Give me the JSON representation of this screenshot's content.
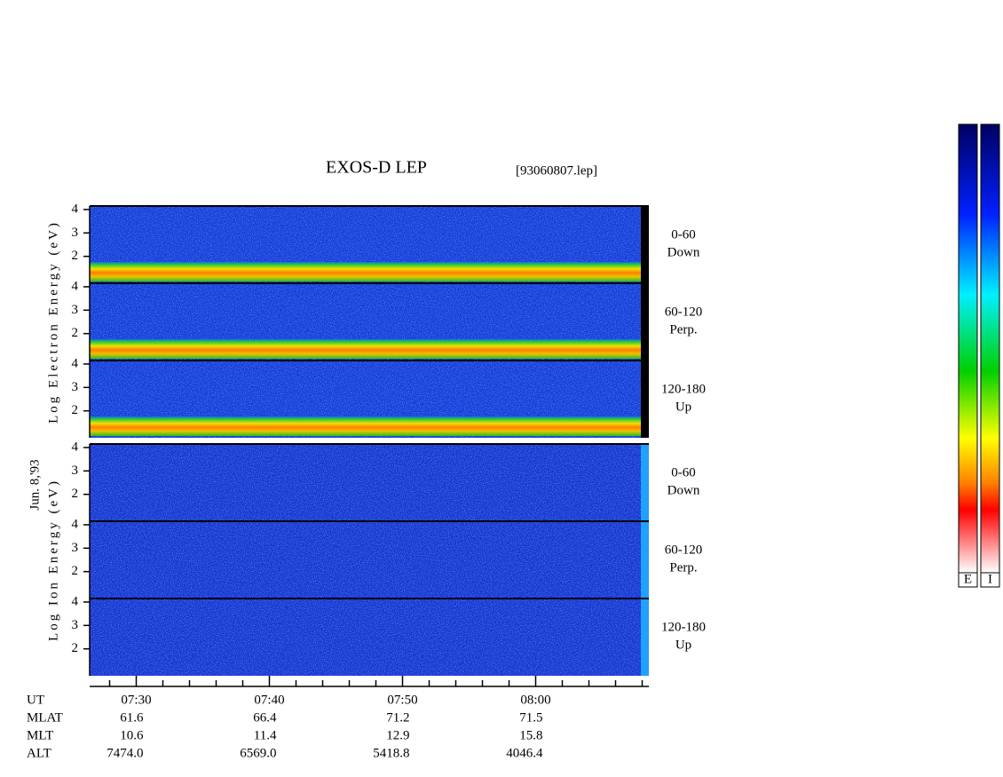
{
  "chart_data": {
    "type": "spectrogram",
    "title": "EXOS-D LEP",
    "file_label": "[93060807.lep]",
    "date_label": "Jun. 8,'93",
    "xlim": [
      446.5,
      488.5
    ],
    "xticks": [
      {
        "value": 450,
        "label": "07:30"
      },
      {
        "value": 460,
        "label": "07:40"
      },
      {
        "value": 470,
        "label": "07:50"
      },
      {
        "value": 480,
        "label": "08:00"
      }
    ],
    "xminor_ticks": [
      448,
      452,
      454,
      456,
      458,
      462,
      464,
      466,
      468,
      472,
      474,
      476,
      478,
      482,
      484,
      486,
      488
    ],
    "groups": [
      {
        "species": "electron",
        "y_label": "Log Electron Energy (eV)",
        "colorbar": "E",
        "panels": [
          {
            "label": "0-60",
            "sublabel": "Down",
            "ylim": [
              0.85,
              4.15
            ],
            "yticks": [
              2,
              3,
              4
            ]
          },
          {
            "label": "60-120",
            "sublabel": "Perp.",
            "ylim": [
              0.85,
              4.15
            ],
            "yticks": [
              2,
              3,
              4
            ]
          },
          {
            "label": "120-180",
            "sublabel": "Up",
            "ylim": [
              0.85,
              4.15
            ],
            "yticks": [
              2,
              3,
              4
            ]
          }
        ]
      },
      {
        "species": "ion",
        "y_label": "Log Ion Energy (eV)",
        "colorbar": "I",
        "panels": [
          {
            "label": "0-60",
            "sublabel": "Down",
            "ylim": [
              0.85,
              4.15
            ],
            "yticks": [
              2,
              3,
              4
            ]
          },
          {
            "label": "60-120",
            "sublabel": "Perp.",
            "ylim": [
              0.85,
              4.15
            ],
            "yticks": [
              2,
              3,
              4
            ]
          },
          {
            "label": "120-180",
            "sublabel": "Up",
            "ylim": [
              0.85,
              4.15
            ],
            "yticks": [
              2,
              3,
              4
            ]
          }
        ]
      }
    ],
    "orbit": {
      "ut_label": "UT",
      "rows": [
        {
          "label": "MLAT",
          "values": [
            "61.6",
            "66.4",
            "71.2",
            "71.5"
          ]
        },
        {
          "label": "MLT",
          "values": [
            "10.6",
            "11.4",
            "12.9",
            "15.8"
          ]
        },
        {
          "label": "ALT",
          "values": [
            "7474.0",
            "6569.0",
            "5418.8",
            "4046.4"
          ]
        }
      ]
    }
  }
}
